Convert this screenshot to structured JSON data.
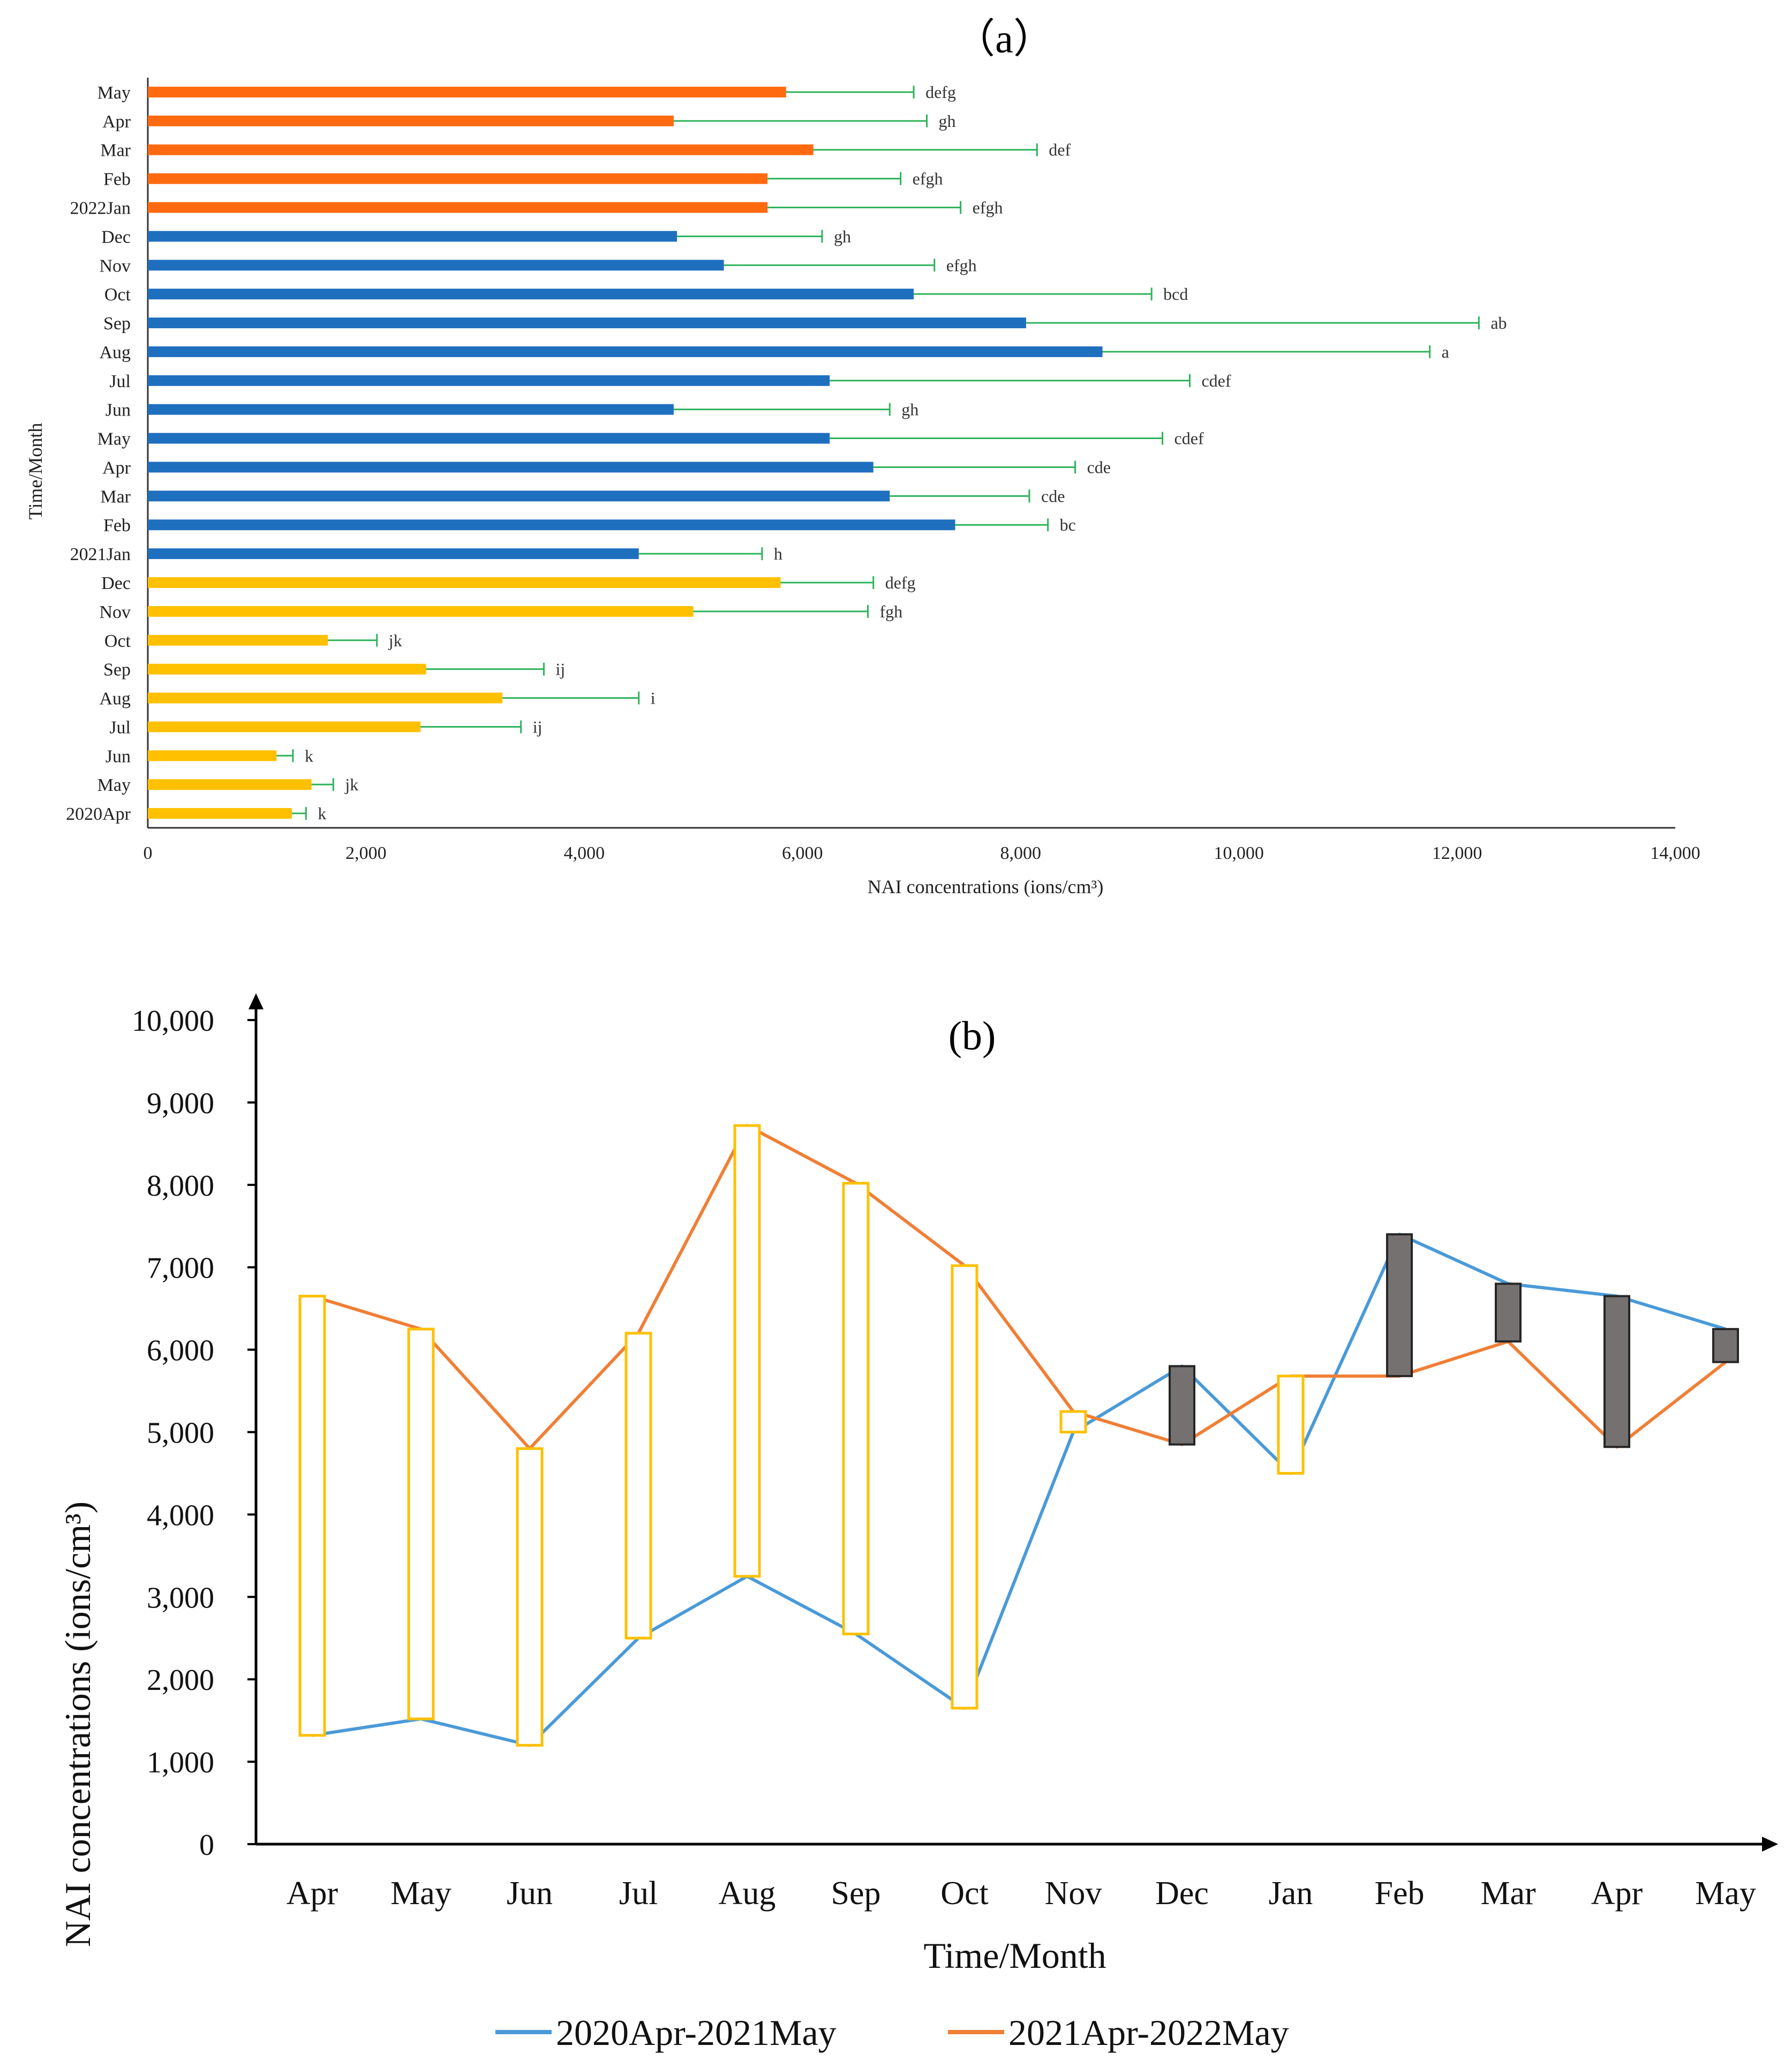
{
  "chart_data": [
    {
      "id": "a",
      "type": "bar",
      "orientation": "horizontal",
      "panel_label": "（a）",
      "xlabel": "NAI concentrations (ions/cm³)",
      "ylabel": "Time/Month",
      "xlim": [
        0,
        14000
      ],
      "xticks": [
        0,
        2000,
        4000,
        6000,
        8000,
        10000,
        12000,
        14000
      ],
      "xtick_labels": [
        "0",
        "2,000",
        "4,000",
        "6,000",
        "8,000",
        "10,000",
        "12,000",
        "14,000"
      ],
      "categories": [
        "2020Apr",
        "May",
        "Jun",
        "Jul",
        "Aug",
        "Sep",
        "Oct",
        "Nov",
        "Dec",
        "2021Jan",
        "Feb",
        "Mar",
        "Apr",
        "May",
        "Jun",
        "Jul",
        "Aug",
        "Sep",
        "Oct",
        "Nov",
        "Dec",
        "2022Jan",
        "Feb",
        "Mar",
        "Apr",
        "May"
      ],
      "values": [
        1320,
        1500,
        1180,
        2500,
        3250,
        2550,
        1650,
        5000,
        5800,
        4500,
        7400,
        6800,
        6650,
        6250,
        4820,
        6250,
        8750,
        8050,
        7020,
        5280,
        4850,
        5680,
        5680,
        6100,
        4820,
        5850
      ],
      "errors": [
        130,
        200,
        150,
        920,
        1250,
        1080,
        450,
        1600,
        850,
        1130,
        850,
        1280,
        1850,
        3050,
        1980,
        3300,
        3000,
        4150,
        2180,
        1930,
        1330,
        1770,
        1220,
        2050,
        2320,
        1170
      ],
      "significance": [
        "k",
        "jk",
        "k",
        "ij",
        "i",
        "ij",
        "jk",
        "fgh",
        "defg",
        "h",
        "bc",
        "cde",
        "cde",
        "cdef",
        "gh",
        "cdef",
        "a",
        "ab",
        "bcd",
        "efgh",
        "gh",
        "efgh",
        "efgh",
        "def",
        "gh",
        "defg"
      ],
      "groups": [
        "2020",
        "2020",
        "2020",
        "2020",
        "2020",
        "2020",
        "2020",
        "2020",
        "2020",
        "2021",
        "2021",
        "2021",
        "2021",
        "2021",
        "2021",
        "2021",
        "2021",
        "2021",
        "2021",
        "2021",
        "2021",
        "2022",
        "2022",
        "2022",
        "2022",
        "2022"
      ],
      "group_colors": {
        "2020": "#FFC000",
        "2021": "#1F6FBF",
        "2022": "#FF6A10"
      },
      "error_bar_color": "#2DB35A"
    },
    {
      "id": "b",
      "type": "line",
      "panel_label": "(b)",
      "xlabel": "Time/Month",
      "ylabel": "NAI concentrations (ions/cm³)",
      "ylim": [
        0,
        10000
      ],
      "yticks": [
        0,
        1000,
        2000,
        3000,
        4000,
        5000,
        6000,
        7000,
        8000,
        9000,
        10000
      ],
      "ytick_labels": [
        "0",
        "1,000",
        "2,000",
        "3,000",
        "4,000",
        "5,000",
        "6,000",
        "7,000",
        "8,000",
        "9,000",
        "10,000"
      ],
      "categories": [
        "Apr",
        "May",
        "Jun",
        "Jul",
        "Aug",
        "Sep",
        "Oct",
        "Nov",
        "Dec",
        "Jan",
        "Feb",
        "Mar",
        "Apr",
        "May"
      ],
      "series": [
        {
          "name": "2020Apr-2021May",
          "color": "#4A9AD8",
          "values": [
            1320,
            1520,
            1200,
            2500,
            3250,
            2550,
            1650,
            5000,
            5800,
            4500,
            7400,
            6800,
            6650,
            6250
          ]
        },
        {
          "name": "2021Apr-2022May",
          "color": "#F07F36",
          "values": [
            6650,
            6250,
            4800,
            6200,
            8720,
            8020,
            7020,
            5250,
            4850,
            5680,
            5680,
            6100,
            4820,
            5850
          ]
        }
      ],
      "box_up_color": "#FFFFFF",
      "box_up_border": "#FFC000",
      "box_down_color": "#767171",
      "box_down_border": "#262626"
    }
  ]
}
